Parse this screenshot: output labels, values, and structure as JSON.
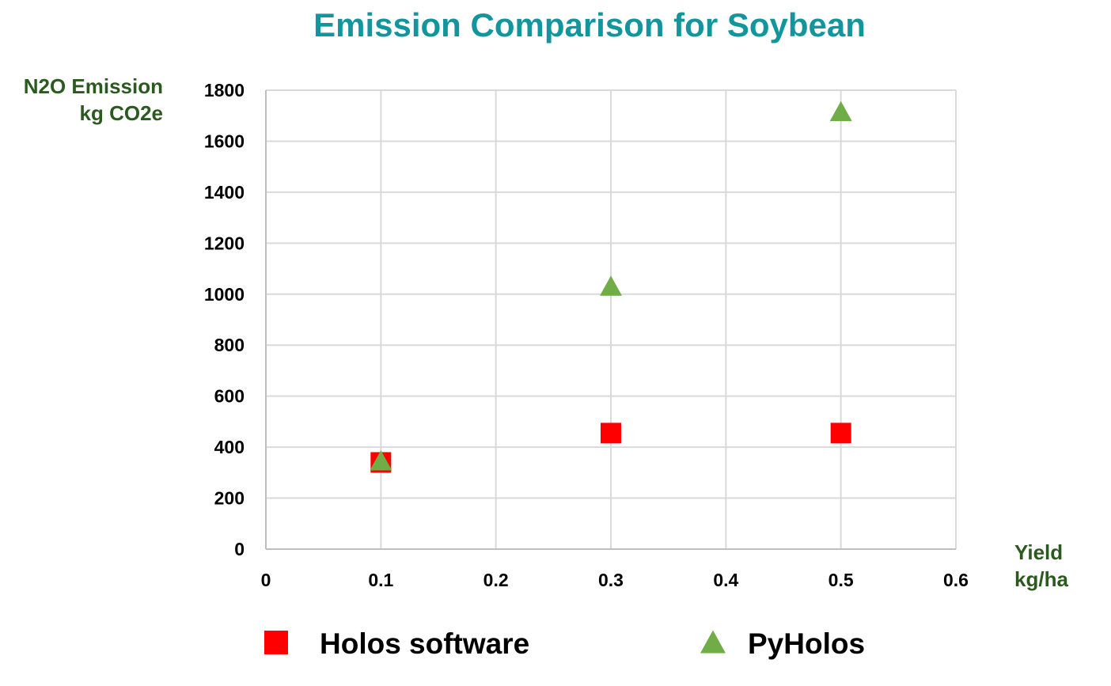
{
  "chart_data": {
    "type": "scatter",
    "title": "Emission Comparison for Soybean",
    "ylabel": [
      "N2O Emission",
      "kg CO2e"
    ],
    "xlabel": [
      "Yield",
      "kg/ha"
    ],
    "xlim": [
      0,
      0.6
    ],
    "ylim": [
      0,
      1800
    ],
    "x_ticks": [
      0,
      0.1,
      0.2,
      0.3,
      0.4,
      0.5,
      0.6
    ],
    "y_ticks": [
      0,
      200,
      400,
      600,
      800,
      1000,
      1200,
      1400,
      1600,
      1800
    ],
    "grid": true,
    "legend_position": "bottom",
    "series": [
      {
        "name": "Holos software",
        "marker": "square",
        "color": "#ff0000",
        "points": [
          {
            "x": 0.1,
            "y": 340
          },
          {
            "x": 0.3,
            "y": 455
          },
          {
            "x": 0.5,
            "y": 455
          }
        ]
      },
      {
        "name": "PyHolos",
        "marker": "triangle",
        "color": "#70ad47",
        "points": [
          {
            "x": 0.1,
            "y": 345
          },
          {
            "x": 0.3,
            "y": 1030
          },
          {
            "x": 0.5,
            "y": 1715
          }
        ]
      }
    ]
  }
}
